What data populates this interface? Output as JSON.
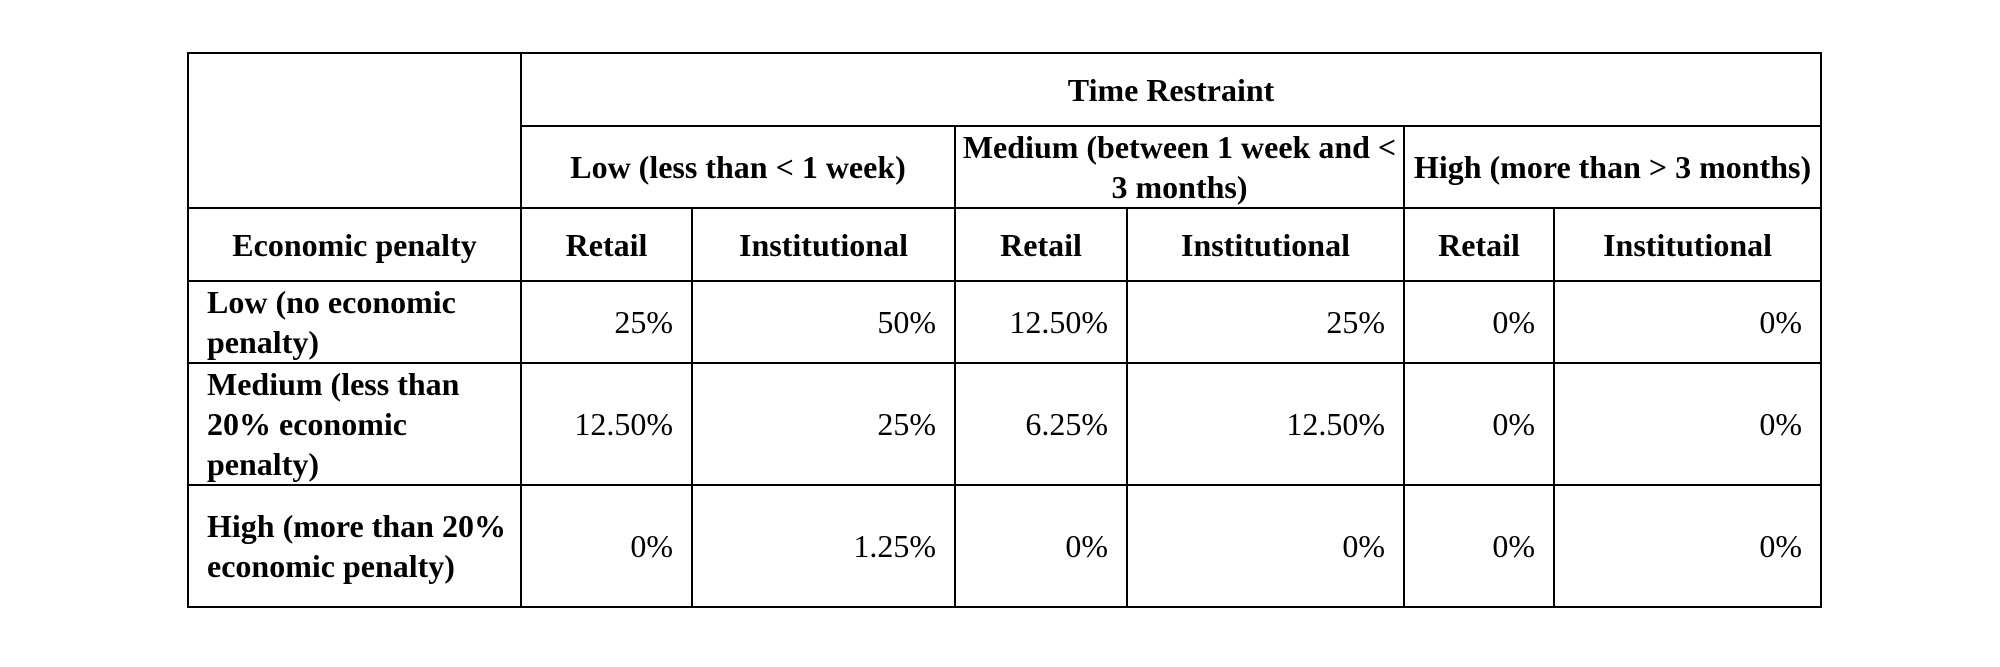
{
  "table": {
    "time_restraint_label": "Time Restraint",
    "time_levels": [
      {
        "label": "Low (less than < 1 week)"
      },
      {
        "label": "Medium (between 1 week and < 3 months)"
      },
      {
        "label": "High (more than > 3 months)"
      }
    ],
    "row_header_label": "Economic penalty",
    "investor_types": [
      "Retail",
      "Institutional",
      "Retail",
      "Institutional",
      "Retail",
      "Institutional"
    ],
    "rows": [
      {
        "label": "Low (no economic penalty)",
        "values": [
          "25%",
          "50%",
          "12.50%",
          "25%",
          "0%",
          "0%"
        ]
      },
      {
        "label": "Medium (less than 20% economic penalty)",
        "values": [
          "12.50%",
          "25%",
          "6.25%",
          "12.50%",
          "0%",
          "0%"
        ]
      },
      {
        "label": "High (more than 20% economic penalty)",
        "values": [
          "0%",
          "1.25%",
          "0%",
          "0%",
          "0%",
          "0%"
        ]
      }
    ]
  }
}
